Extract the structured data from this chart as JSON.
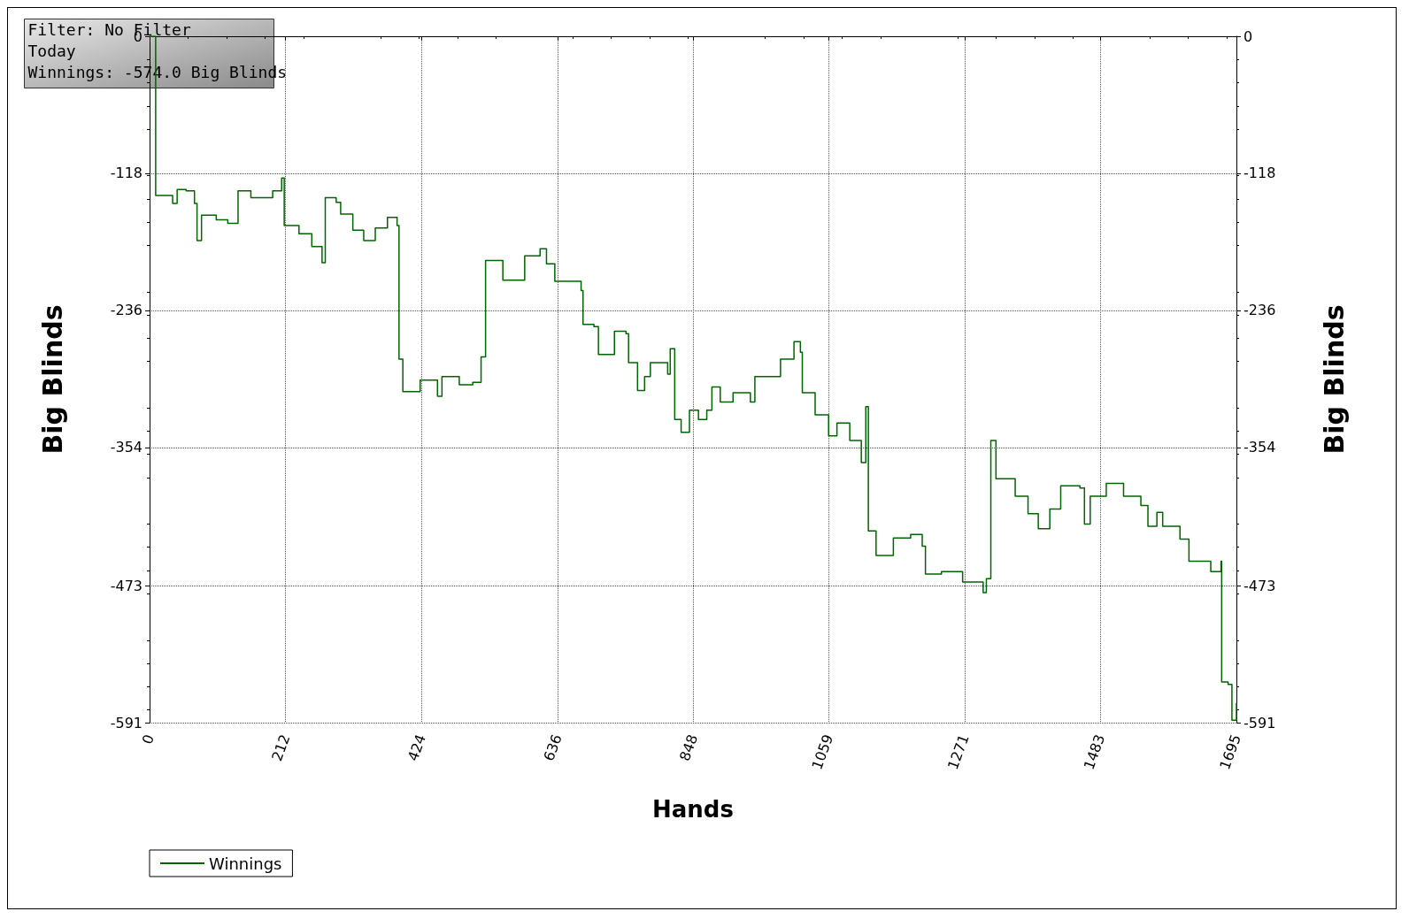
{
  "chart_data": {
    "type": "step",
    "xlabel": "Hands",
    "ylabel": "Big Blinds",
    "y2label": "Big Blinds",
    "annotations": [
      "Filter: No Filter",
      "Today",
      "Winnings: -574.0 Big Blinds"
    ],
    "xlim": [
      0,
      1695
    ],
    "xticks": [
      0,
      212,
      424,
      636,
      848,
      1059,
      1271,
      1483,
      1695
    ],
    "ylim": [
      -591,
      0
    ],
    "yticks": [
      -591,
      -473,
      -354,
      -236,
      -118,
      0
    ],
    "y2lim": [
      -591,
      0
    ],
    "y2ticks": [
      -591,
      -473,
      -354,
      -236,
      -118,
      0
    ],
    "grid": true,
    "legend": "bottom left",
    "line_style": "solid",
    "marker": "none",
    "series": [
      {
        "name": "Winnings",
        "color": "#006400",
        "x": [
          0,
          9.5,
          36,
          43,
          57,
          70,
          74,
          81,
          104,
          122,
          138,
          158,
          192,
          206,
          210,
          233,
          253,
          269,
          274,
          291,
          298,
          317,
          334,
          352,
          371,
          386,
          389,
          395,
          422,
          449,
          456,
          483,
          504,
          517,
          524,
          544,
          551,
          578,
          585,
          609,
          619,
          632,
          673,
          676,
          693,
          700,
          720,
          725,
          743,
          747,
          761,
          772,
          781,
          808,
          812,
          819,
          829,
          842,
          856,
          869,
          877,
          890,
          910,
          937,
          944,
          964,
          984,
          1005,
          1015,
          1018,
          1038,
          1059,
          1072,
          1092,
          1110,
          1117,
          1121,
          1133,
          1160,
          1187,
          1205,
          1210,
          1235,
          1268,
          1300,
          1305,
          1312,
          1320,
          1350,
          1370,
          1386,
          1404,
          1421,
          1451,
          1458,
          1467,
          1492,
          1519,
          1546,
          1557,
          1571,
          1580,
          1607,
          1621,
          1655,
          1671,
          1672,
          1682,
          1688,
          1695
        ],
        "values": [
          0,
          -137,
          -144,
          -132,
          -133,
          -144,
          -176,
          -154,
          -158,
          -161,
          -133,
          -139,
          -133,
          -122,
          -163,
          -170,
          -181,
          -195,
          -139,
          -143,
          -153,
          -167,
          -176,
          -165,
          -156,
          -163,
          -278,
          -306,
          -296,
          -310,
          -293,
          -300,
          -298,
          -276,
          -193,
          -193,
          -210,
          -210,
          -189,
          -183,
          -196,
          -211,
          -219,
          -248,
          -250,
          -274,
          -274,
          -254,
          -256,
          -281,
          -305,
          -293,
          -281,
          -291,
          -269,
          -330,
          -341,
          -322,
          -330,
          -322,
          -302,
          -315,
          -307,
          -315,
          -293,
          -293,
          -278,
          -263,
          -272,
          -307,
          -326,
          -344,
          -333,
          -348,
          -367,
          -319,
          -426,
          -447,
          -432,
          -429,
          -439,
          -463,
          -461,
          -470,
          -479,
          -467,
          -348,
          -381,
          -396,
          -411,
          -424,
          -407,
          -387,
          -389,
          -420,
          -396,
          -385,
          -396,
          -404,
          -422,
          -410,
          -422,
          -433,
          -452,
          -461,
          -452,
          -556,
          -558,
          -589,
          -574
        ]
      }
    ]
  }
}
